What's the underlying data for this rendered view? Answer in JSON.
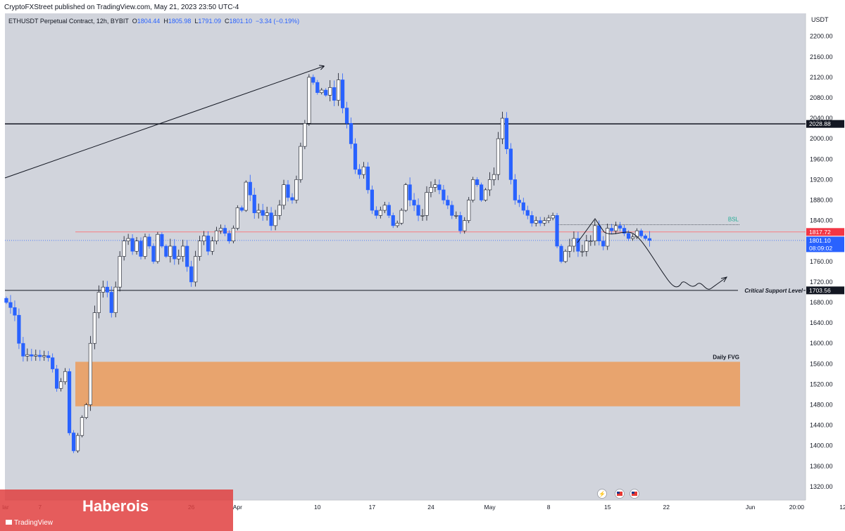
{
  "published_line": "CryptoFXStreet published on TradingView.com, May 21, 2023 23:50 UTC-4",
  "header": {
    "symbol": "ETHUSDT Perpetual Contract, 12h, BYBIT",
    "o_label": "O",
    "o": "1804.44",
    "h_label": "H",
    "h": "1805.98",
    "l_label": "L",
    "l": "1791.09",
    "c_label": "C",
    "c": "1801.10",
    "change": "−3.34 (−0.19%)"
  },
  "watermark": {
    "name": "Haberois",
    "brand": "TradingView"
  },
  "colors": {
    "up": "#ffffff",
    "down": "#2962ff",
    "fvg": "#e8a46e",
    "red_line": "#f77c80",
    "last_price": "#2962ff"
  },
  "icons": [
    "lightning-icon",
    "us-flag-icon",
    "us-flag-icon"
  ],
  "chart_data": {
    "type": "candlestick",
    "currency": "USDT",
    "timeframe": "12h",
    "ylim": [
      1300,
      2240
    ],
    "y_ticks": [
      1320,
      1360,
      1400,
      1440,
      1480,
      1520,
      1560,
      1600,
      1640,
      1680,
      1720,
      1760,
      1800,
      1840,
      1880,
      1920,
      1960,
      2000,
      2040,
      2080,
      2120,
      2160,
      2200
    ],
    "x_ticks": [
      {
        "label": "lar",
        "i": -1
      },
      {
        "label": "7",
        "i": 8
      },
      {
        "label": "26",
        "i": 44
      },
      {
        "label": "Apr",
        "i": 55
      },
      {
        "label": "10",
        "i": 74
      },
      {
        "label": "17",
        "i": 87
      },
      {
        "label": "24",
        "i": 101
      },
      {
        "label": "May",
        "i": 115
      },
      {
        "label": "8",
        "i": 129
      },
      {
        "label": "15",
        "i": 143
      },
      {
        "label": "22",
        "i": 157
      },
      {
        "label": "Jun",
        "i": 177
      },
      {
        "label": "20:00",
        "i": 188
      },
      {
        "label": "12",
        "i": 199
      }
    ],
    "levels": [
      {
        "name": "resistance",
        "price": 2028.88,
        "label": "2028.88"
      },
      {
        "name": "red-level",
        "price": 1817.72,
        "label": "1817.72"
      },
      {
        "name": "critical-support",
        "price": 1703.56,
        "label": "1703.56",
        "text": "Critical Support Level"
      },
      {
        "name": "last-price",
        "price": 1801.1,
        "label": "1801.10",
        "countdown": "08:09:02"
      }
    ],
    "bsl": {
      "text": "BSL",
      "price": 1832
    },
    "fvg": {
      "text": "Daily FVG",
      "top": 1564,
      "bottom": 1477
    },
    "closes": [
      1680,
      1670,
      1655,
      1600,
      1575,
      1578,
      1575,
      1577,
      1574,
      1576,
      1572,
      1550,
      1512,
      1525,
      1545,
      1425,
      1390,
      1420,
      1455,
      1480,
      1600,
      1660,
      1700,
      1710,
      1700,
      1660,
      1710,
      1770,
      1800,
      1805,
      1780,
      1800,
      1770,
      1808,
      1790,
      1760,
      1813,
      1790,
      1770,
      1790,
      1765,
      1770,
      1790,
      1750,
      1720,
      1770,
      1800,
      1810,
      1780,
      1800,
      1820,
      1825,
      1815,
      1800,
      1825,
      1865,
      1860,
      1915,
      1890,
      1855,
      1860,
      1850,
      1855,
      1830,
      1850,
      1870,
      1910,
      1885,
      1880,
      1920,
      1985,
      2030,
      2120,
      2110,
      2090,
      2095,
      2085,
      2100,
      2075,
      2115,
      2060,
      2030,
      1990,
      1940,
      1930,
      1945,
      1900,
      1860,
      1850,
      1860,
      1870,
      1850,
      1830,
      1835,
      1860,
      1910,
      1880,
      1870,
      1850,
      1850,
      1895,
      1905,
      1910,
      1900,
      1880,
      1870,
      1850,
      1850,
      1820,
      1840,
      1880,
      1920,
      1910,
      1880,
      1900,
      1920,
      1930,
      2000,
      2040,
      1980,
      1920,
      1880,
      1875,
      1860,
      1850,
      1835,
      1840,
      1835,
      1840,
      1845,
      1850,
      1790,
      1760,
      1780,
      1790,
      1805,
      1780,
      1780,
      1800,
      1800,
      1830,
      1800,
      1790,
      1825,
      1820,
      1830,
      1825,
      1815,
      1805,
      1808,
      1820,
      1810,
      1805,
      1801.1
    ]
  }
}
